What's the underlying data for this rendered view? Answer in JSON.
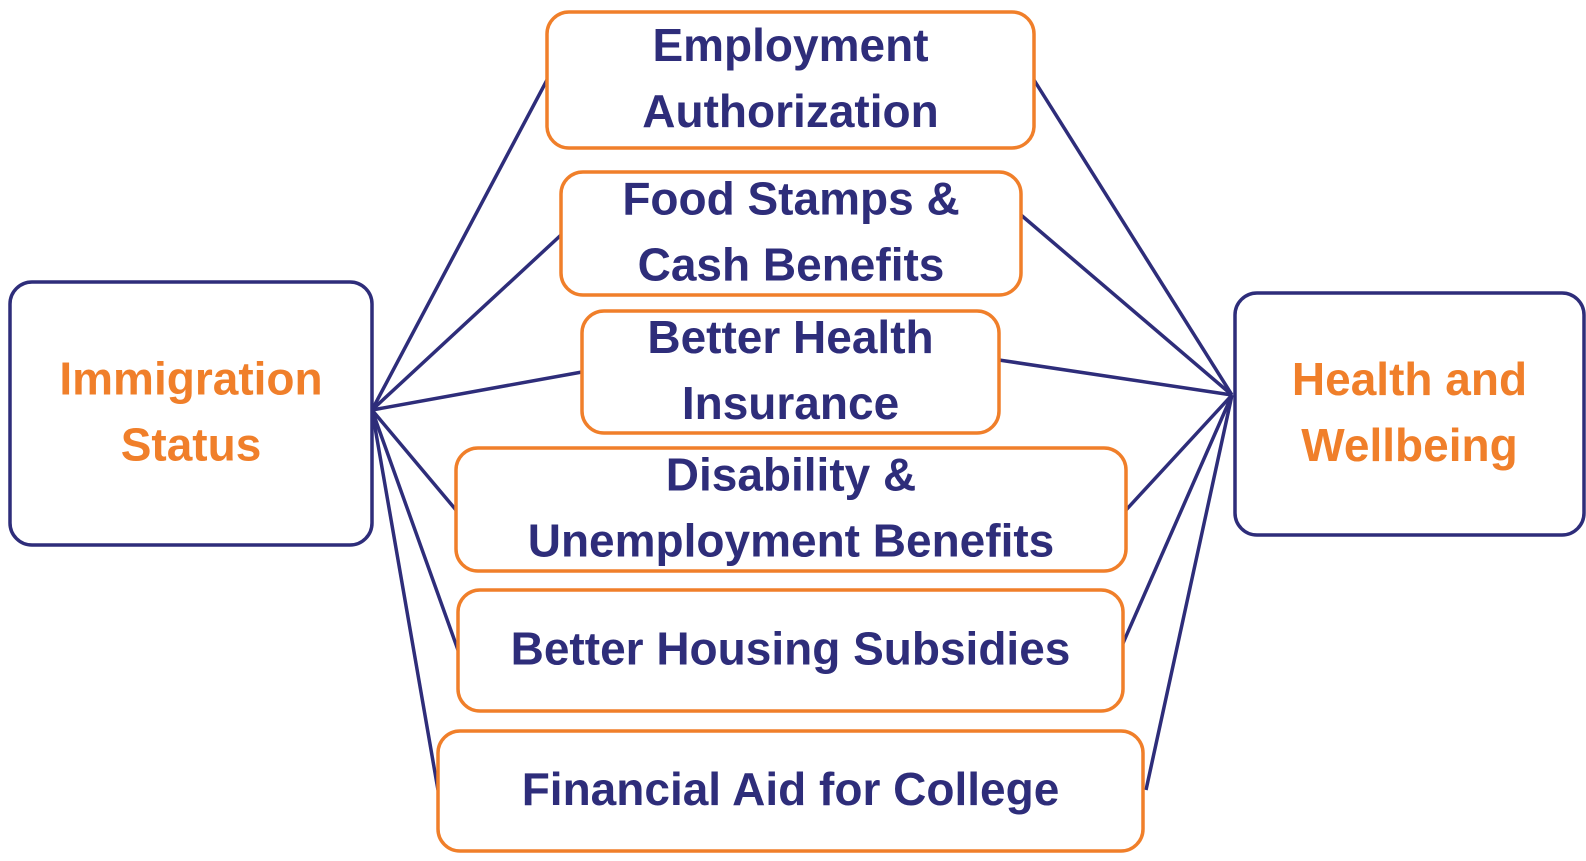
{
  "left": {
    "lines": [
      "Immigration",
      "Status"
    ]
  },
  "right": {
    "lines": [
      "Health and",
      "Wellbeing"
    ]
  },
  "items": [
    {
      "lines": [
        "Employment",
        "Authorization"
      ]
    },
    {
      "lines": [
        "Food Stamps &",
        "Cash Benefits"
      ]
    },
    {
      "lines": [
        "Better Health",
        "Insurance"
      ]
    },
    {
      "lines": [
        "Disability &",
        "Unemployment Benefits"
      ]
    },
    {
      "lines": [
        "Better Housing Subsidies"
      ]
    },
    {
      "lines": [
        "Financial Aid for College"
      ]
    }
  ]
}
